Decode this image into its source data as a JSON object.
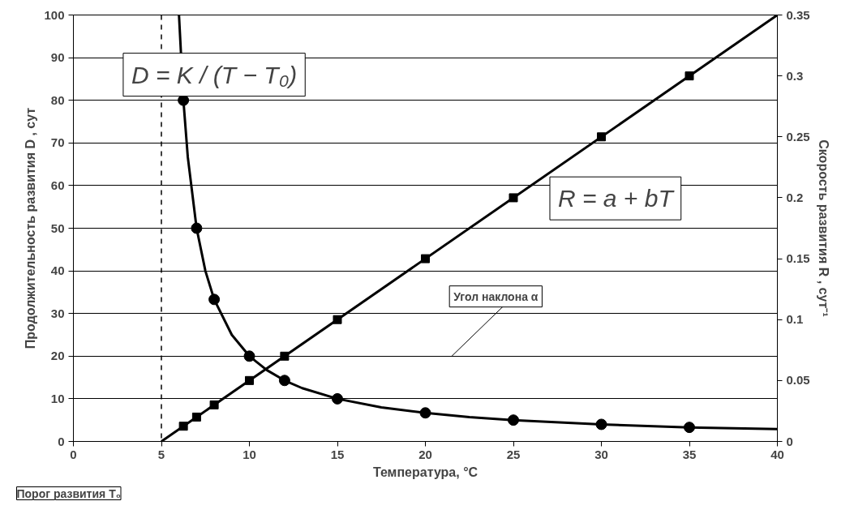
{
  "chart_data": {
    "type": "line",
    "xlabel": "Температура, °C",
    "ylabel": "Продолжительность развития D , сут",
    "y2label": "Скорость развития R , сут⁻¹",
    "xlim": [
      0,
      40
    ],
    "xticks": [
      0,
      5,
      10,
      15,
      20,
      25,
      30,
      35,
      40
    ],
    "ylim": [
      0,
      100
    ],
    "yticks": [
      0,
      10,
      20,
      30,
      40,
      50,
      60,
      70,
      80,
      90,
      100
    ],
    "y2lim": [
      0,
      0.35
    ],
    "y2ticks": [
      0,
      0.05,
      0.1,
      0.15,
      0.2,
      0.25,
      0.3,
      0.35
    ],
    "grid": "y",
    "series": [
      {
        "color": "#000000",
        "marker": "none",
        "line_style": "solid",
        "x": [
          6,
          6.25,
          6.5,
          7,
          7.5,
          8,
          9,
          10,
          11,
          12,
          13,
          15,
          17.5,
          20,
          22.5,
          25,
          30,
          35,
          40
        ],
        "values": [
          100,
          80,
          66.7,
          50,
          40,
          33.3,
          25,
          20,
          16.7,
          14.3,
          12.5,
          10,
          8,
          6.7,
          5.7,
          5,
          4,
          3.3,
          2.9
        ]
      },
      {
        "type": "scatter",
        "color": "#000000",
        "marker": "circle",
        "x": [
          6.25,
          7,
          8,
          10,
          12,
          15,
          20,
          25,
          30,
          35
        ],
        "values": [
          80,
          50,
          33.3,
          20,
          14.3,
          10,
          6.7,
          5,
          4,
          3.3
        ]
      },
      {
        "axis": "y2",
        "color": "#000000",
        "marker": "none",
        "line_style": "solid",
        "x": [
          5,
          40
        ],
        "values": [
          0,
          0.35
        ]
      },
      {
        "type": "scatter",
        "axis": "y2",
        "color": "#000000",
        "marker": "square",
        "x": [
          6.25,
          7,
          8,
          10,
          12,
          15,
          20,
          25,
          30,
          35
        ],
        "values": [
          0.0125,
          0.02,
          0.03,
          0.05,
          0.07,
          0.1,
          0.15,
          0.2,
          0.25,
          0.3
        ]
      }
    ],
    "ref_lines": [
      {
        "axis": "x",
        "value": 5,
        "line_style": "dashed",
        "color": "#000000"
      }
    ],
    "annotations": [
      "D = K / (T − T₀)",
      "R = a + bT",
      "Угол наклона α",
      "Порог развития T₀"
    ]
  }
}
